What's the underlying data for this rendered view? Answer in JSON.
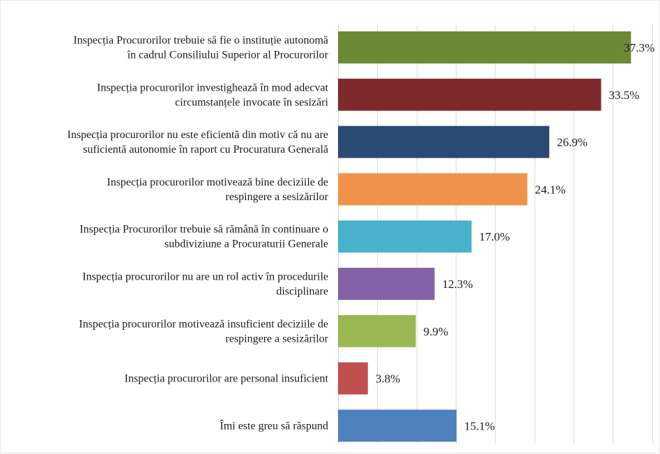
{
  "chart_data": {
    "type": "bar",
    "orientation": "horizontal",
    "categories": [
      [
        "Inspecția Procurorilor trebuie să fie o instituție autonomă",
        "în cadrul Consiliului Superior al Procurorilor"
      ],
      [
        "Inspecția procurorilor investighează în mod adecvat",
        "circumstanțele invocate în sesizări"
      ],
      [
        "Inspecția procurorilor nu este eficientă din motiv că nu are",
        "suficientă autonomie în raport cu Procuratura Generală"
      ],
      [
        "Inspecția procurorilor motivează bine deciziile de",
        "respingere a sesizărilor"
      ],
      [
        "Inspecția Procurorilor trebuie să rămână în continuare o",
        "subdiviziune a Procuraturii Generale"
      ],
      [
        "Inspecția procurorilor nu are un rol activ în procedurile",
        "disciplinare"
      ],
      [
        "Inspecția procurorilor motivează insuficient deciziile de",
        "respingere a sesizărilor"
      ],
      [
        "Inspecția procurorilor are personal insuficient"
      ],
      [
        "Îmi este greu să răspund"
      ]
    ],
    "values": [
      37.3,
      33.5,
      26.9,
      24.1,
      17.0,
      12.3,
      9.9,
      3.8,
      15.1
    ],
    "value_labels": [
      "37.3%",
      "33.5%",
      "26.9%",
      "24.1%",
      "17.0%",
      "12.3%",
      "9.9%",
      "3.8%",
      "15.1%"
    ],
    "colors": [
      "#6b8a35",
      "#7e2a2d",
      "#2b4a72",
      "#f0924a",
      "#48b1cb",
      "#8363a5",
      "#99b853",
      "#c0504d",
      "#4f81bd"
    ],
    "xlim": [
      0,
      40
    ],
    "grid": true,
    "legend": false
  }
}
